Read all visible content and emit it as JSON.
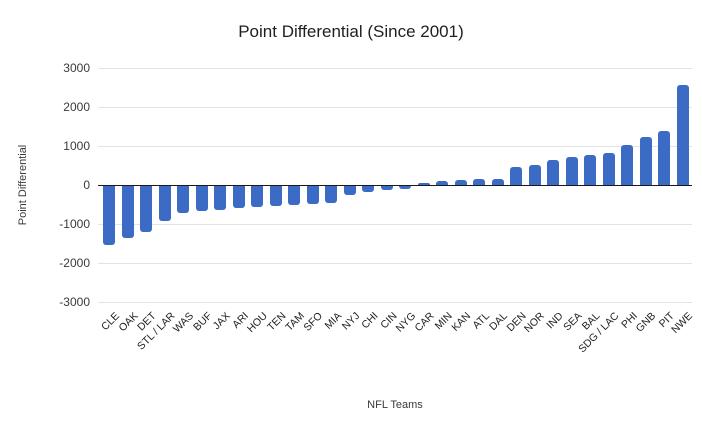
{
  "chart_data": {
    "type": "bar",
    "title": "Point Differential (Since 2001)",
    "xlabel": "NFL Teams",
    "ylabel": "Point Differential",
    "ylim": [
      -3000,
      3000
    ],
    "yticks": [
      3000,
      2000,
      1000,
      0,
      -1000,
      -2000,
      -3000
    ],
    "grid": true,
    "legend": "none",
    "bar_color": "#3c6bc5",
    "background_color": "#ffffff",
    "categories": [
      "CLE",
      "OAK",
      "DET",
      "STL / LAR",
      "WAS",
      "BUF",
      "JAX",
      "ARI",
      "HOU",
      "TEN",
      "TAM",
      "SFO",
      "MIA",
      "NYJ",
      "CHI",
      "CIN",
      "NYG",
      "CAR",
      "MIN",
      "KAN",
      "ATL",
      "DAL",
      "DEN",
      "NOR",
      "IND",
      "SEA",
      "BAL",
      "SDG / LAC",
      "PHI",
      "GNB",
      "PIT",
      "NWE"
    ],
    "values": [
      -1500,
      -1330,
      -1170,
      -890,
      -680,
      -630,
      -600,
      -570,
      -545,
      -520,
      -490,
      -465,
      -445,
      -230,
      -155,
      -100,
      -70,
      40,
      100,
      130,
      145,
      165,
      465,
      500,
      630,
      710,
      780,
      825,
      1030,
      1225,
      1370,
      2550
    ]
  }
}
